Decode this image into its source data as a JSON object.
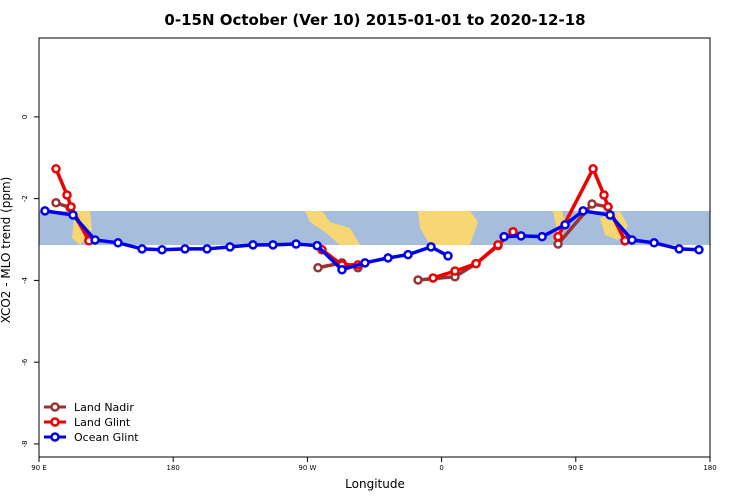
{
  "chart_data": {
    "type": "line",
    "title": "0-15N October (Ver 10)   2015-01-01 to 2020-12-18",
    "x_label": "Longitude",
    "y_label": "XCO2 - MLO trend (ppm)",
    "xlim": [
      90,
      540
    ],
    "xticks": [
      {
        "value": 90,
        "label": "90 E"
      },
      {
        "value": 180,
        "label": "180"
      },
      {
        "value": 270,
        "label": "90 W"
      },
      {
        "value": 360,
        "label": "0"
      },
      {
        "value": 450,
        "label": "90 E"
      },
      {
        "value": 540,
        "label": "180"
      }
    ],
    "ylim": [
      -8.32,
      1.93
    ],
    "yticks": [
      0,
      -2,
      -4,
      -6,
      -8
    ],
    "legend": "bottom-left",
    "series": [
      {
        "name": "Land Nadir",
        "color": "#993333",
        "x": [
          101.4,
          110.8,
          123.5,
          null,
          277.1,
          293.2,
          303.9,
          null,
          344.2,
          369.0,
          383.1,
          397.8,
          null,
          438.1,
          460.9,
          471.6,
          483.0
        ],
        "values": [
          -2.1,
          -2.22,
          -3.01,
          null,
          -3.69,
          -3.57,
          -3.69,
          null,
          -3.99,
          -3.91,
          -3.59,
          -3.15,
          null,
          -3.11,
          -2.13,
          -2.2,
          -3.03
        ]
      },
      {
        "name": "Land Glint",
        "color": "#ee0000",
        "x": [
          101.4,
          108.8,
          111.5,
          123.5,
          null,
          279.8,
          293.2,
          303.9,
          null,
          354.3,
          369.0,
          383.1,
          397.8,
          407.9,
          null,
          438.1,
          461.6,
          468.9,
          471.6,
          483.0
        ],
        "values": [
          -1.27,
          -1.91,
          -2.2,
          -3.03,
          null,
          -3.25,
          -3.62,
          -3.62,
          null,
          -3.94,
          -3.77,
          -3.59,
          -3.13,
          -2.81,
          null,
          -2.93,
          -1.27,
          -1.91,
          -2.2,
          -3.03
        ]
      },
      {
        "name": "Ocean Glint",
        "color": "#0000ee",
        "x": [
          94.0,
          112.8,
          127.6,
          143.0,
          159.1,
          172.5,
          187.9,
          202.7,
          218.1,
          233.5,
          246.9,
          262.4,
          276.5,
          293.2,
          308.6,
          324.1,
          337.5,
          352.9,
          364.3,
          null,
          401.9,
          413.3,
          427.4,
          442.8,
          454.9,
          473.0,
          487.7,
          502.5,
          519.3,
          532.6
        ],
        "values": [
          -2.3,
          -2.4,
          -3.01,
          -3.08,
          -3.23,
          -3.25,
          -3.23,
          -3.23,
          -3.18,
          -3.13,
          -3.13,
          -3.11,
          -3.15,
          -3.74,
          -3.57,
          -3.45,
          -3.37,
          -3.18,
          -3.4,
          null,
          -2.93,
          -2.91,
          -2.93,
          -2.64,
          -2.3,
          -2.4,
          -3.01,
          -3.08,
          -3.23,
          -3.25
        ]
      }
    ]
  }
}
